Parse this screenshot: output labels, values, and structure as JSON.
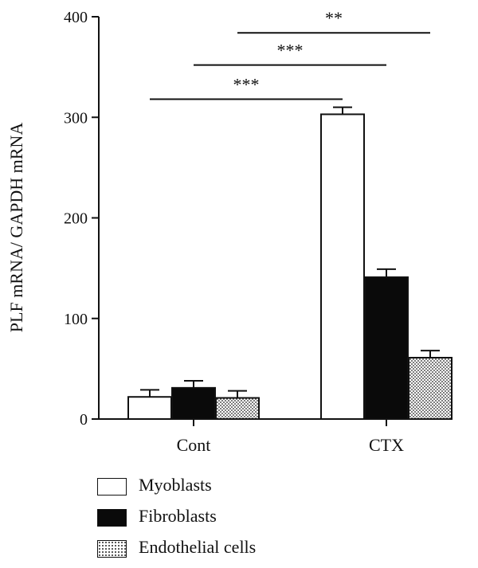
{
  "chart_data": {
    "type": "bar",
    "categories": [
      "Cont",
      "CTX"
    ],
    "ylabel": "PLF mRNA/ GAPDH mRNA",
    "xlabel": "",
    "ylim": [
      0,
      400
    ],
    "yticks": [
      0,
      100,
      200,
      300,
      400
    ],
    "series": [
      {
        "name": "Myoblasts",
        "values": [
          22,
          303
        ],
        "errors": [
          7,
          7
        ],
        "fill": "white",
        "color": "#ffffff"
      },
      {
        "name": "Fibroblasts",
        "values": [
          31,
          141
        ],
        "errors": [
          7,
          8
        ],
        "fill": "black",
        "color": "#0a0a0a"
      },
      {
        "name": "Endothelial cells",
        "values": [
          21,
          61
        ],
        "errors": [
          7,
          7
        ],
        "fill": "dotted",
        "color": "#cfcfcf"
      }
    ],
    "significance": [
      {
        "label": "***",
        "y": 318
      },
      {
        "label": "***",
        "y": 352
      },
      {
        "label": "**",
        "y": 384
      }
    ],
    "legend_position": "bottom-left"
  }
}
